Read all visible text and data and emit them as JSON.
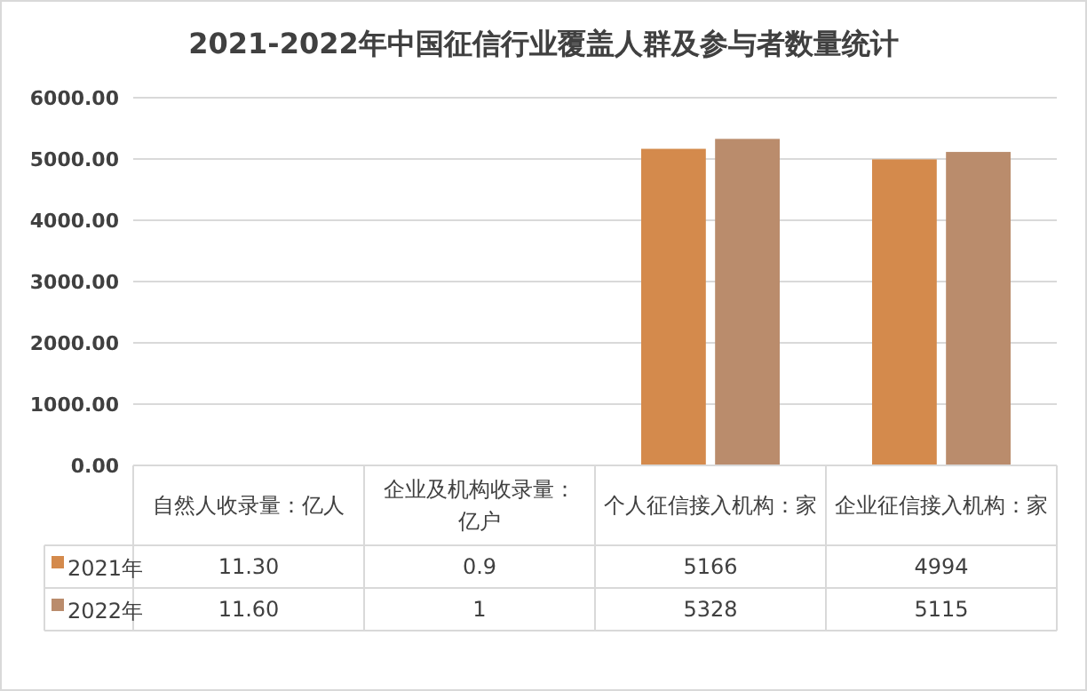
{
  "chart_data": {
    "type": "bar",
    "title": "2021-2022年中国征信行业覆盖人群及参与者数量统计",
    "categories": [
      "自然人收录量：亿人",
      "企业及机构收录量：亿户",
      "个人征信接入机构：家",
      "企业征信接入机构：家"
    ],
    "series": [
      {
        "name": "2021年",
        "color": "#d48a4c",
        "values": [
          11.3,
          0.9,
          5166,
          4994
        ],
        "value_labels": [
          "11.30",
          "0.9",
          "5166",
          "4994"
        ]
      },
      {
        "name": "2022年",
        "color": "#ba8c6c",
        "values": [
          11.6,
          1,
          5328,
          5115
        ],
        "value_labels": [
          "11.60",
          "1",
          "5328",
          "5115"
        ]
      }
    ],
    "ylim": [
      0,
      6000
    ],
    "yticks": [
      {
        "value": 0,
        "label": "0.00"
      },
      {
        "value": 1000,
        "label": "1000.00"
      },
      {
        "value": 2000,
        "label": "2000.00"
      },
      {
        "value": 3000,
        "label": "3000.00"
      },
      {
        "value": 4000,
        "label": "4000.00"
      },
      {
        "value": 5000,
        "label": "5000.00"
      },
      {
        "value": 6000,
        "label": "6000.00"
      }
    ],
    "grid": "y",
    "legend": "bottom"
  }
}
